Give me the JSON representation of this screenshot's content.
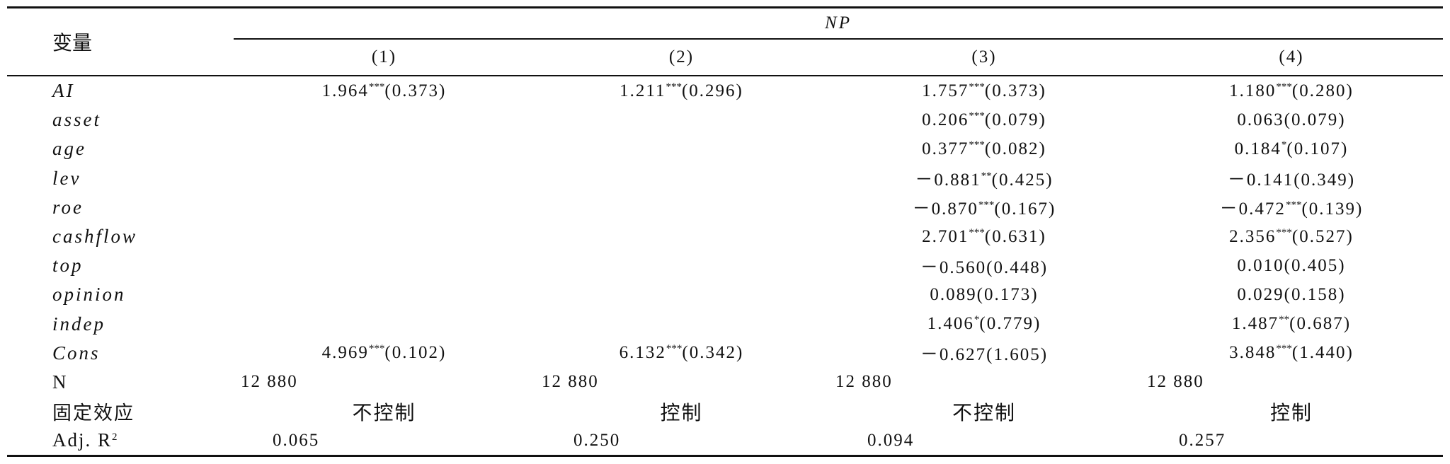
{
  "table": {
    "header": {
      "variable": "变量",
      "group": "NP",
      "columns": [
        "(1)",
        "(2)",
        "(3)",
        "(4)"
      ]
    },
    "rows": [
      {
        "label": "AI",
        "italic": true,
        "cells": [
          {
            "coef": "1.964",
            "stars": "***",
            "se": "(0.373)"
          },
          {
            "coef": "1.211",
            "stars": "***",
            "se": "(0.296)"
          },
          {
            "coef": "1.757",
            "stars": "***",
            "se": "(0.373)"
          },
          {
            "coef": "1.180",
            "stars": "***",
            "se": "(0.280)"
          }
        ]
      },
      {
        "label": "asset",
        "italic": true,
        "cells": [
          null,
          null,
          {
            "coef": "0.206",
            "stars": "***",
            "se": "(0.079)"
          },
          {
            "coef": "0.063",
            "se": "(0.079)"
          }
        ]
      },
      {
        "label": "age",
        "italic": true,
        "cells": [
          null,
          null,
          {
            "coef": "0.377",
            "stars": "***",
            "se": "(0.082)"
          },
          {
            "coef": "0.184",
            "stars": "*",
            "se": "(0.107)"
          }
        ]
      },
      {
        "label": "lev",
        "italic": true,
        "cells": [
          null,
          null,
          {
            "coef": "－0.881",
            "stars": "**",
            "se": "(0.425)"
          },
          {
            "coef": "－0.141",
            "se": "(0.349)"
          }
        ]
      },
      {
        "label": "roe",
        "italic": true,
        "cells": [
          null,
          null,
          {
            "coef": "－0.870",
            "stars": "***",
            "se": "(0.167)"
          },
          {
            "coef": "－0.472",
            "stars": "***",
            "se": "(0.139)"
          }
        ]
      },
      {
        "label": "cashflow",
        "italic": true,
        "cells": [
          null,
          null,
          {
            "coef": "2.701",
            "stars": "***",
            "se": "(0.631)"
          },
          {
            "coef": "2.356",
            "stars": "***",
            "se": "(0.527)"
          }
        ]
      },
      {
        "label": "top",
        "italic": true,
        "cells": [
          null,
          null,
          {
            "coef": "－0.560",
            "se": "(0.448)"
          },
          {
            "coef": "0.010",
            "se": "(0.405)"
          }
        ]
      },
      {
        "label": "opinion",
        "italic": true,
        "cells": [
          null,
          null,
          {
            "coef": "0.089",
            "se": "(0.173)"
          },
          {
            "coef": "0.029",
            "se": "(0.158)"
          }
        ]
      },
      {
        "label": "indep",
        "italic": true,
        "cells": [
          null,
          null,
          {
            "coef": "1.406",
            "stars": "*",
            "se": "(0.779)"
          },
          {
            "coef": "1.487",
            "stars": "**",
            "se": "(0.687)"
          }
        ]
      },
      {
        "label": "Cons",
        "italic": true,
        "cells": [
          {
            "coef": "4.969",
            "stars": "***",
            "se": "(0.102)"
          },
          {
            "coef": "6.132",
            "stars": "***",
            "se": "(0.342)"
          },
          {
            "coef": "－0.627",
            "se": "(1.605)"
          },
          {
            "coef": "3.848",
            "stars": "***",
            "se": "(1.440)"
          }
        ]
      },
      {
        "label": "N",
        "italic": false,
        "cells": [
          "12 880",
          "12 880",
          "12 880",
          "12 880"
        ]
      },
      {
        "label": "固定效应",
        "italic": false,
        "cells": [
          "不控制",
          "控制",
          "不控制",
          "控制"
        ]
      },
      {
        "label": "Adj. R",
        "sup": "2",
        "italic": false,
        "cells": [
          "0.065",
          "0.250",
          "0.094",
          "0.257"
        ]
      }
    ]
  }
}
